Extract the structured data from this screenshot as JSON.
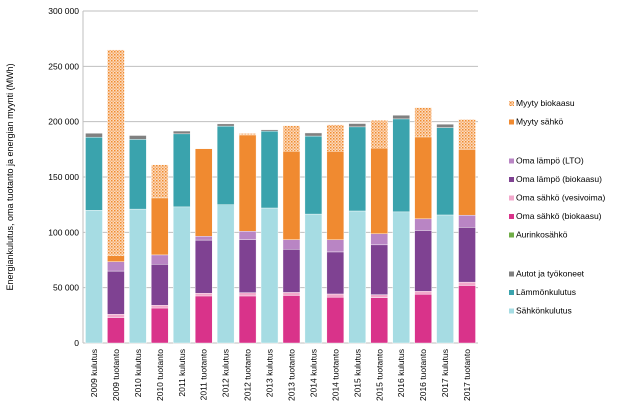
{
  "chart_data": {
    "type": "bar",
    "stacked": true,
    "title": "",
    "ylabel": "Energiankulutus, oma tuotanto ja energian myynti (MWh)",
    "xlabel": "",
    "ylim": [
      0,
      300000
    ],
    "yticks": [
      0,
      50000,
      100000,
      150000,
      200000,
      250000,
      300000
    ],
    "ytick_labels": [
      "0",
      "50 000",
      "100 000",
      "150 000",
      "200 000",
      "250 000",
      "300 000"
    ],
    "grid": true,
    "legend_position": "right",
    "categories": [
      "2009 kulutus",
      "2009 tuotanto",
      "2010 kulutus",
      "2010 tuotanto",
      "2011 kulutus",
      "2011 tuotanto",
      "2012 kulutus",
      "2012 tuotanto",
      "2013 kulutus",
      "2013 tuotanto",
      "2014 kulutus",
      "2014 tuotanto",
      "2015 kulutus",
      "2015 tuotanto",
      "2016 kulutus",
      "2016 tuotanto",
      "2017 kulutus",
      "2017 tuotanto"
    ],
    "series": [
      {
        "name": "Sähkönkulutus",
        "color": "#a6dce3",
        "values": [
          120000,
          null,
          121000,
          null,
          123000,
          null,
          125000,
          null,
          122000,
          null,
          116500,
          null,
          119300,
          null,
          118500,
          null,
          115700,
          null
        ]
      },
      {
        "name": "Lämmönkulutus",
        "color": "#3aa3ad",
        "values": [
          66000,
          null,
          63000,
          null,
          66000,
          null,
          71000,
          null,
          69500,
          null,
          70500,
          null,
          76000,
          null,
          84000,
          null,
          79000,
          null
        ]
      },
      {
        "name": "Autot ja työkoneet",
        "color": "#808080",
        "values": [
          3500,
          null,
          3500,
          null,
          2500,
          null,
          2000,
          null,
          1200,
          null,
          2800,
          null,
          3000,
          null,
          3300,
          null,
          3000,
          null
        ]
      },
      {
        "name": "Aurinkosähkö",
        "color": "#70ad47",
        "values": [
          null,
          0,
          null,
          0,
          null,
          0,
          null,
          0,
          null,
          0,
          null,
          0,
          null,
          0,
          null,
          0,
          null,
          0
        ]
      },
      {
        "name": "Oma sähkö (biokaasu)",
        "color": "#d9338a",
        "values": [
          null,
          23000,
          null,
          31600,
          null,
          42500,
          null,
          42500,
          null,
          43000,
          null,
          41300,
          null,
          41000,
          null,
          44000,
          null,
          52000
        ]
      },
      {
        "name": "Oma sähkö (vesivoima)",
        "color": "#f2a8cc",
        "values": [
          null,
          3000,
          null,
          2500,
          null,
          2500,
          null,
          3000,
          null,
          2700,
          null,
          3000,
          null,
          2700,
          null,
          2700,
          null,
          3000
        ]
      },
      {
        "name": "Oma lämpö (biokaasu)",
        "color": "#7f4292",
        "values": [
          null,
          39000,
          null,
          37000,
          null,
          48000,
          null,
          48000,
          null,
          39000,
          null,
          38000,
          null,
          45000,
          null,
          55000,
          null,
          49500
        ]
      },
      {
        "name": "Oma lämpö (LTO)",
        "color": "#b985c4",
        "values": [
          null,
          8500,
          null,
          8500,
          null,
          3500,
          null,
          7500,
          null,
          8700,
          null,
          11000,
          null,
          10000,
          null,
          10500,
          null,
          11000
        ]
      },
      {
        "name": "Myyty sähkö",
        "color": "#f08a30",
        "values": [
          null,
          5500,
          null,
          51500,
          null,
          79000,
          null,
          87000,
          null,
          80000,
          null,
          80000,
          null,
          77500,
          null,
          74000,
          null,
          59500
        ]
      },
      {
        "name": "Myyty biokaasu",
        "color": "#f9c89a",
        "hatched": true,
        "values": [
          null,
          186000,
          null,
          30000,
          null,
          0,
          null,
          1500,
          null,
          23000,
          null,
          24000,
          null,
          25000,
          null,
          26500,
          null,
          27000
        ]
      }
    ],
    "legend_order": [
      "Myyty biokaasu",
      "Myyty sähkö",
      "",
      "Oma lämpö (LTO)",
      "Oma lämpö (biokaasu)",
      "Oma sähkö (vesivoima)",
      "Oma sähkö (biokaasu)",
      "Aurinkosähkö",
      "",
      "Autot ja työkoneet",
      "Lämmönkulutus",
      "Sähkönkulutus"
    ]
  }
}
